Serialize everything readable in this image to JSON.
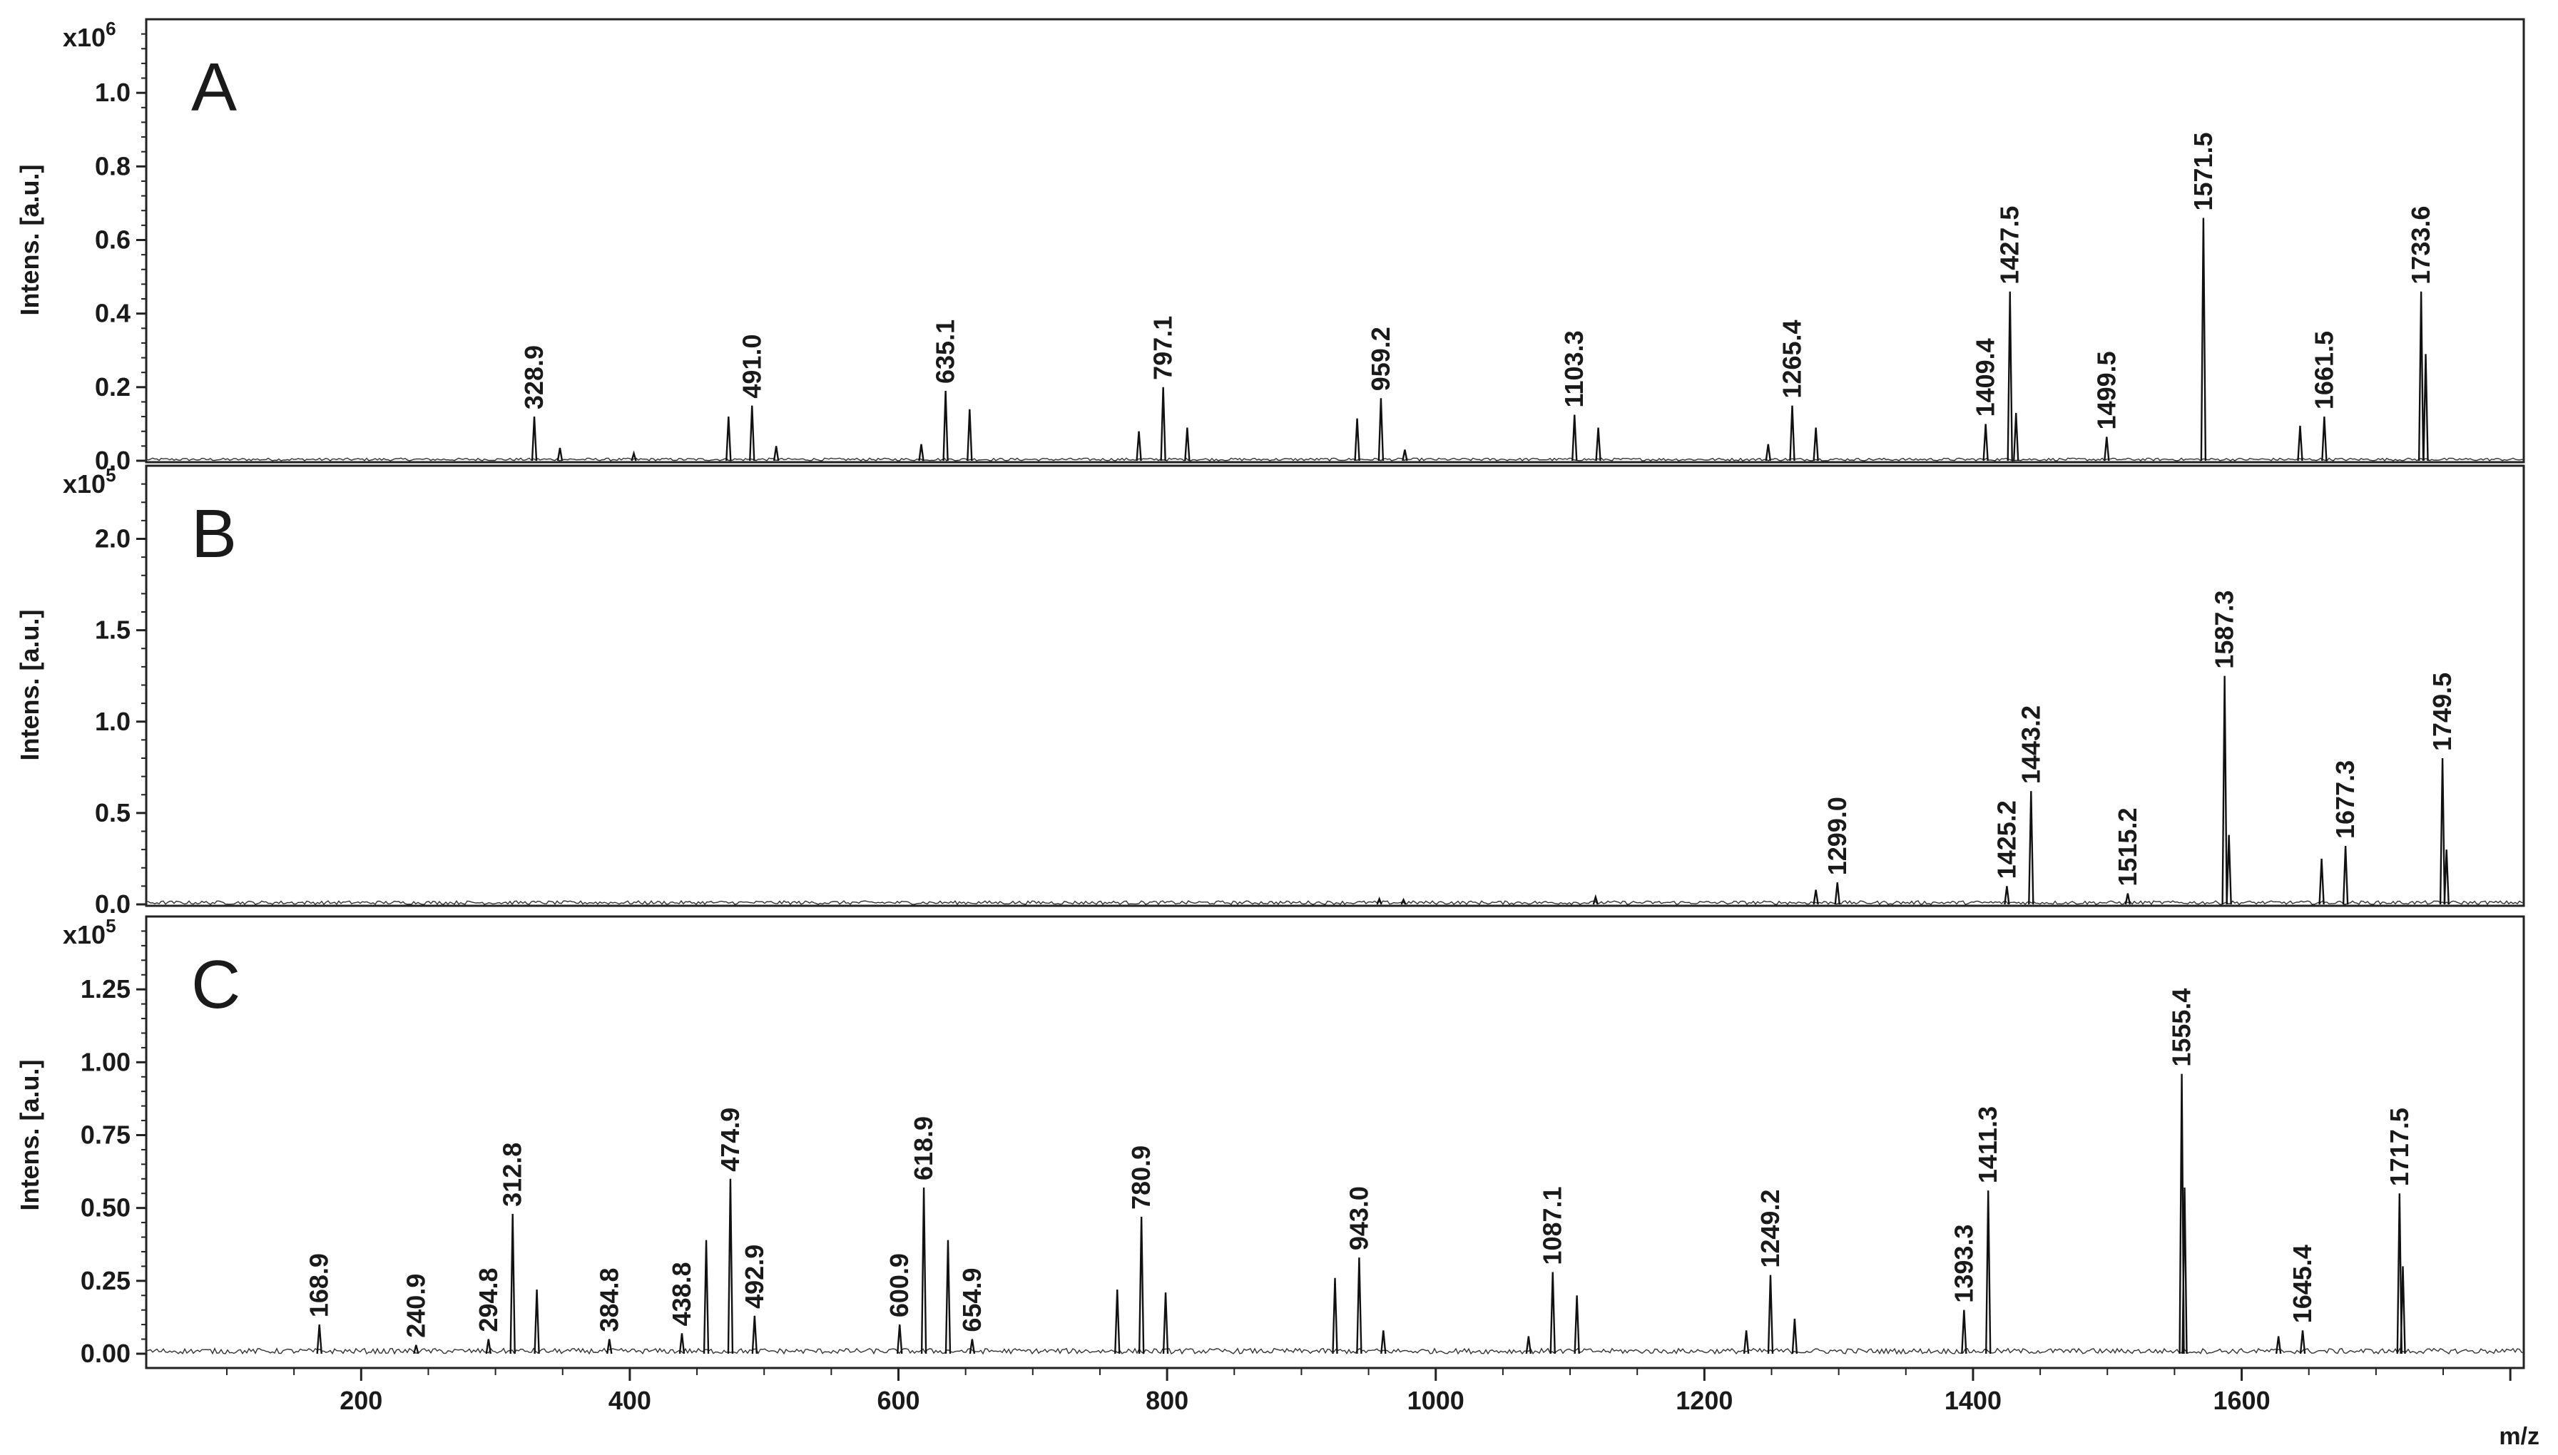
{
  "chart_data": {
    "type": "line",
    "xlabel": "m/z",
    "xlim": [
      40,
      1810
    ],
    "xticks": [
      200,
      400,
      600,
      800,
      1000,
      1200,
      1400,
      1600
    ],
    "panels": [
      {
        "letter": "A",
        "ylabel": "Intens. [a.u.]",
        "scale_base": "x10",
        "scale_exp": "6",
        "ylim": [
          0,
          1.2
        ],
        "yticks": [
          "0.0",
          "0.2",
          "0.4",
          "0.6",
          "0.8",
          "1.0"
        ],
        "peaks": [
          {
            "mz": 328.9,
            "i": 0.12,
            "label": "328.9"
          },
          {
            "mz": 348.0,
            "i": 0.035
          },
          {
            "mz": 403.0,
            "i": 0.02
          },
          {
            "mz": 473.5,
            "i": 0.12
          },
          {
            "mz": 491.0,
            "i": 0.15,
            "label": "491.0"
          },
          {
            "mz": 509.0,
            "i": 0.04
          },
          {
            "mz": 617.0,
            "i": 0.045
          },
          {
            "mz": 635.1,
            "i": 0.19,
            "label": "635.1"
          },
          {
            "mz": 653.0,
            "i": 0.14
          },
          {
            "mz": 779.0,
            "i": 0.08
          },
          {
            "mz": 797.1,
            "i": 0.2,
            "label": "797.1"
          },
          {
            "mz": 815.0,
            "i": 0.09
          },
          {
            "mz": 941.5,
            "i": 0.115
          },
          {
            "mz": 959.2,
            "i": 0.17,
            "label": "959.2"
          },
          {
            "mz": 977.0,
            "i": 0.03
          },
          {
            "mz": 1103.3,
            "i": 0.125,
            "label": "1103.3"
          },
          {
            "mz": 1121.0,
            "i": 0.09
          },
          {
            "mz": 1247.5,
            "i": 0.045
          },
          {
            "mz": 1265.4,
            "i": 0.15,
            "label": "1265.4"
          },
          {
            "mz": 1283.0,
            "i": 0.09
          },
          {
            "mz": 1409.4,
            "i": 0.1,
            "label": "1409.4"
          },
          {
            "mz": 1427.5,
            "i": 0.46,
            "label": "1427.5"
          },
          {
            "mz": 1432.0,
            "i": 0.13
          },
          {
            "mz": 1499.5,
            "i": 0.065,
            "label": "1499.5"
          },
          {
            "mz": 1571.5,
            "i": 0.66,
            "label": "1571.5"
          },
          {
            "mz": 1643.5,
            "i": 0.095
          },
          {
            "mz": 1661.5,
            "i": 0.12,
            "label": "1661.5"
          },
          {
            "mz": 1733.6,
            "i": 0.46,
            "label": "1733.6"
          },
          {
            "mz": 1737.0,
            "i": 0.29
          }
        ]
      },
      {
        "letter": "B",
        "ylabel": "Intens. [a.u.]",
        "scale_base": "x10",
        "scale_exp": "5",
        "ylim": [
          0,
          2.4
        ],
        "yticks": [
          "0.0",
          "0.5",
          "1.0",
          "1.5",
          "2.0"
        ],
        "peaks": [
          {
            "mz": 958.0,
            "i": 0.03
          },
          {
            "mz": 976.0,
            "i": 0.025
          },
          {
            "mz": 1119.0,
            "i": 0.04
          },
          {
            "mz": 1283.0,
            "i": 0.08
          },
          {
            "mz": 1299.0,
            "i": 0.12,
            "label": "1299.0"
          },
          {
            "mz": 1425.2,
            "i": 0.1,
            "label": "1425.2"
          },
          {
            "mz": 1443.2,
            "i": 0.62,
            "label": "1443.2"
          },
          {
            "mz": 1515.2,
            "i": 0.06,
            "label": "1515.2"
          },
          {
            "mz": 1587.3,
            "i": 1.25,
            "label": "1587.3"
          },
          {
            "mz": 1590.5,
            "i": 0.38
          },
          {
            "mz": 1659.5,
            "i": 0.25
          },
          {
            "mz": 1677.3,
            "i": 0.32,
            "label": "1677.3"
          },
          {
            "mz": 1749.5,
            "i": 0.8,
            "label": "1749.5"
          },
          {
            "mz": 1752.5,
            "i": 0.3
          }
        ]
      },
      {
        "letter": "C",
        "ylabel": "Intens. [a.u.]",
        "scale_base": "x10",
        "scale_exp": "5",
        "ylim": [
          0,
          1.5
        ],
        "yticks": [
          "0.00",
          "0.25",
          "0.50",
          "0.75",
          "1.00",
          "1.25"
        ],
        "peaks": [
          {
            "mz": 168.9,
            "i": 0.1,
            "label": "168.9"
          },
          {
            "mz": 240.9,
            "i": 0.03,
            "label": "240.9"
          },
          {
            "mz": 294.8,
            "i": 0.05,
            "label": "294.8"
          },
          {
            "mz": 312.8,
            "i": 0.48,
            "label": "312.8"
          },
          {
            "mz": 330.8,
            "i": 0.22
          },
          {
            "mz": 384.8,
            "i": 0.05,
            "label": "384.8"
          },
          {
            "mz": 438.8,
            "i": 0.07,
            "label": "438.8"
          },
          {
            "mz": 456.9,
            "i": 0.39
          },
          {
            "mz": 474.9,
            "i": 0.6,
            "label": "474.9"
          },
          {
            "mz": 492.9,
            "i": 0.13,
            "label": "492.9"
          },
          {
            "mz": 600.9,
            "i": 0.1,
            "label": "600.9"
          },
          {
            "mz": 618.9,
            "i": 0.57,
            "label": "618.9"
          },
          {
            "mz": 636.9,
            "i": 0.39
          },
          {
            "mz": 654.9,
            "i": 0.05,
            "label": "654.9"
          },
          {
            "mz": 762.9,
            "i": 0.22
          },
          {
            "mz": 780.9,
            "i": 0.47,
            "label": "780.9"
          },
          {
            "mz": 798.9,
            "i": 0.21
          },
          {
            "mz": 925.0,
            "i": 0.26
          },
          {
            "mz": 943.0,
            "i": 0.33,
            "label": "943.0"
          },
          {
            "mz": 961.0,
            "i": 0.08
          },
          {
            "mz": 1069.1,
            "i": 0.06
          },
          {
            "mz": 1087.1,
            "i": 0.28,
            "label": "1087.1"
          },
          {
            "mz": 1105.1,
            "i": 0.2
          },
          {
            "mz": 1231.2,
            "i": 0.08
          },
          {
            "mz": 1249.2,
            "i": 0.27,
            "label": "1249.2"
          },
          {
            "mz": 1267.2,
            "i": 0.12
          },
          {
            "mz": 1393.3,
            "i": 0.15,
            "label": "1393.3"
          },
          {
            "mz": 1411.3,
            "i": 0.56,
            "label": "1411.3"
          },
          {
            "mz": 1555.4,
            "i": 0.96,
            "label": "1555.4"
          },
          {
            "mz": 1557.5,
            "i": 0.57
          },
          {
            "mz": 1627.4,
            "i": 0.06
          },
          {
            "mz": 1645.4,
            "i": 0.08,
            "label": "1645.4"
          },
          {
            "mz": 1717.5,
            "i": 0.55,
            "label": "1717.5"
          },
          {
            "mz": 1720.0,
            "i": 0.3
          }
        ]
      }
    ]
  }
}
